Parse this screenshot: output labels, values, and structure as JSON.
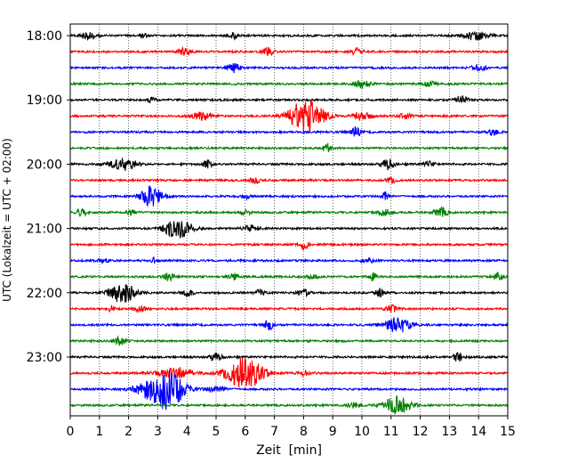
{
  "chart_data": {
    "type": "line",
    "xlabel": "Zeit  [min]",
    "ylabel": "UTC (Lokalzeit = UTC + 02:00)",
    "xlim": [
      0,
      15
    ],
    "x_ticks": [
      "0",
      "1",
      "2",
      "3",
      "4",
      "5",
      "6",
      "7",
      "8",
      "9",
      "10",
      "11",
      "12",
      "13",
      "14",
      "15"
    ],
    "y_tick_labels": [
      "18:00",
      "19:00",
      "20:00",
      "21:00",
      "22:00",
      "23:00"
    ],
    "y_tick_rows": [
      0,
      4,
      8,
      12,
      16,
      20
    ],
    "grid": "vertical dotted at each minute",
    "colors": [
      "#000000",
      "#ff0000",
      "#0000ff",
      "#008000"
    ],
    "series": [
      {
        "start": "18:00",
        "events": [
          [
            0.6,
            0.5,
            0.25
          ],
          [
            2.5,
            0.3,
            0.15
          ],
          [
            5.6,
            0.35,
            0.15
          ],
          [
            13.9,
            0.55,
            0.4
          ]
        ]
      },
      {
        "start": "18:15",
        "events": [
          [
            3.9,
            0.45,
            0.2
          ],
          [
            6.8,
            0.45,
            0.2
          ],
          [
            9.8,
            0.4,
            0.2
          ]
        ]
      },
      {
        "start": "18:30",
        "events": [
          [
            5.6,
            0.55,
            0.2
          ],
          [
            14.0,
            0.35,
            0.25
          ]
        ]
      },
      {
        "start": "18:45",
        "events": [
          [
            10.0,
            0.45,
            0.3
          ],
          [
            12.3,
            0.3,
            0.2
          ]
        ]
      },
      {
        "start": "19:00",
        "events": [
          [
            2.8,
            0.3,
            0.15
          ],
          [
            13.4,
            0.55,
            0.2
          ]
        ]
      },
      {
        "start": "19:15",
        "events": [
          [
            4.5,
            0.45,
            0.35
          ],
          [
            8.1,
            2.2,
            0.55
          ],
          [
            10.0,
            0.55,
            0.3
          ],
          [
            11.5,
            0.35,
            0.2
          ]
        ]
      },
      {
        "start": "19:30",
        "events": [
          [
            9.8,
            0.65,
            0.15
          ],
          [
            14.5,
            0.35,
            0.2
          ]
        ]
      },
      {
        "start": "19:45",
        "events": [
          [
            8.8,
            0.45,
            0.15
          ]
        ]
      },
      {
        "start": "20:00",
        "events": [
          [
            1.8,
            0.75,
            0.45
          ],
          [
            4.7,
            0.45,
            0.15
          ],
          [
            10.9,
            0.65,
            0.2
          ],
          [
            12.3,
            0.3,
            0.2
          ]
        ]
      },
      {
        "start": "20:15",
        "events": [
          [
            6.3,
            0.55,
            0.15
          ],
          [
            11.0,
            0.25,
            0.2
          ]
        ]
      },
      {
        "start": "20:30",
        "events": [
          [
            2.8,
            1.3,
            0.35
          ],
          [
            6.0,
            0.35,
            0.15
          ],
          [
            10.8,
            0.7,
            0.1
          ]
        ]
      },
      {
        "start": "20:45",
        "events": [
          [
            0.4,
            0.4,
            0.2
          ],
          [
            2.1,
            0.35,
            0.15
          ],
          [
            6.0,
            0.3,
            0.15
          ],
          [
            10.8,
            0.4,
            0.25
          ],
          [
            12.7,
            0.55,
            0.25
          ]
        ]
      },
      {
        "start": "21:00",
        "events": [
          [
            3.7,
            1.3,
            0.45
          ],
          [
            6.2,
            0.4,
            0.25
          ]
        ]
      },
      {
        "start": "21:15",
        "events": [
          [
            8.0,
            0.55,
            0.15
          ]
        ]
      },
      {
        "start": "21:30",
        "events": [
          [
            1.1,
            0.3,
            0.2
          ],
          [
            2.9,
            0.4,
            0.1
          ],
          [
            10.2,
            0.3,
            0.2
          ]
        ]
      },
      {
        "start": "21:45",
        "events": [
          [
            3.4,
            0.4,
            0.2
          ],
          [
            5.6,
            0.35,
            0.2
          ],
          [
            8.3,
            0.3,
            0.2
          ],
          [
            10.4,
            0.6,
            0.1
          ],
          [
            14.7,
            0.55,
            0.15
          ]
        ]
      },
      {
        "start": "22:00",
        "events": [
          [
            1.8,
            1.3,
            0.45
          ],
          [
            4.0,
            0.45,
            0.2
          ],
          [
            6.5,
            0.4,
            0.15
          ],
          [
            8.0,
            0.45,
            0.2
          ],
          [
            10.6,
            0.5,
            0.15
          ]
        ]
      },
      {
        "start": "22:15",
        "events": [
          [
            1.4,
            0.4,
            0.1
          ],
          [
            2.4,
            0.35,
            0.2
          ],
          [
            11.0,
            0.45,
            0.2
          ]
        ]
      },
      {
        "start": "22:30",
        "events": [
          [
            6.8,
            0.65,
            0.15
          ],
          [
            11.2,
            1.0,
            0.45
          ]
        ]
      },
      {
        "start": "22:45",
        "events": [
          [
            1.7,
            0.55,
            0.2
          ]
        ]
      },
      {
        "start": "23:00",
        "events": [
          [
            5.0,
            0.45,
            0.2
          ],
          [
            13.3,
            0.5,
            0.2
          ]
        ]
      },
      {
        "start": "23:15",
        "events": [
          [
            3.6,
            0.7,
            0.6
          ],
          [
            6.0,
            2.0,
            0.6
          ],
          [
            8.0,
            0.3,
            0.2
          ]
        ]
      },
      {
        "start": "23:30",
        "events": [
          [
            2.7,
            1.0,
            0.5
          ],
          [
            3.4,
            2.4,
            0.5
          ],
          [
            5.0,
            0.35,
            0.35
          ]
        ]
      },
      {
        "start": "23:45",
        "events": [
          [
            11.2,
            1.1,
            0.45
          ],
          [
            9.7,
            0.3,
            0.2
          ]
        ]
      }
    ]
  }
}
